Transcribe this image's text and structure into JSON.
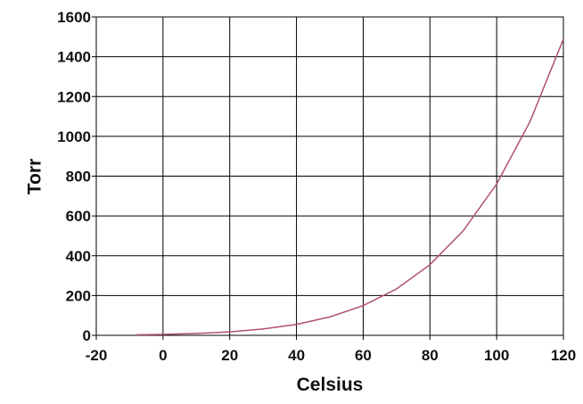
{
  "chart_data": {
    "type": "line",
    "x_label": "Celsius",
    "y_label": "Torr",
    "x": [
      -8,
      0,
      10,
      20,
      30,
      40,
      50,
      60,
      70,
      80,
      90,
      100,
      110,
      120
    ],
    "values": [
      2.5,
      4.6,
      9.2,
      17.5,
      31.8,
      55.3,
      92.5,
      149.4,
      233.7,
      355.1,
      525.8,
      760,
      1074.6,
      1489
    ],
    "color": "#b0506e",
    "xlim": [
      -20,
      120
    ],
    "xticks": [
      -20,
      0,
      20,
      40,
      60,
      80,
      100,
      120
    ],
    "ylim": [
      0,
      1600
    ],
    "yticks": [
      0,
      200,
      400,
      600,
      800,
      1000,
      1200,
      1400,
      1600
    ],
    "grid": true
  }
}
